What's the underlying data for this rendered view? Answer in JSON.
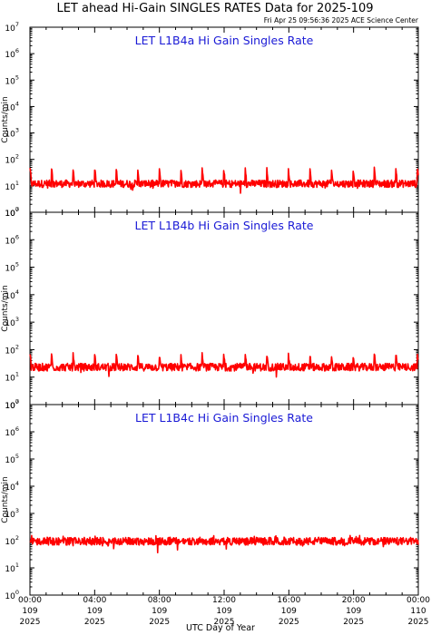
{
  "header": {
    "title": "LET ahead Hi-Gain SINGLES RATES Data for 2025-109",
    "timestamp": "Fri Apr 25 09:56:36 2025 ACE Science Center"
  },
  "x_axis": {
    "title": "UTC Day of Year",
    "ticks": [
      {
        "hours": 0,
        "time": "00:00",
        "day": "109",
        "year": "2025"
      },
      {
        "hours": 4,
        "time": "04:00",
        "day": "109",
        "year": "2025"
      },
      {
        "hours": 8,
        "time": "08:00",
        "day": "109",
        "year": "2025"
      },
      {
        "hours": 12,
        "time": "12:00",
        "day": "109",
        "year": "2025"
      },
      {
        "hours": 16,
        "time": "16:00",
        "day": "109",
        "year": "2025"
      },
      {
        "hours": 20,
        "time": "20:00",
        "day": "109",
        "year": "2025"
      },
      {
        "hours": 24,
        "time": "00:00",
        "day": "110",
        "year": "2025"
      }
    ]
  },
  "colors": {
    "series": "#ff0000",
    "panel_title": "#1a1ad6",
    "axes": "#000000"
  },
  "chart_data": [
    {
      "type": "line",
      "title": "LET L1B4a Hi Gain Singles Rate",
      "ylabel": "Counts/min",
      "yscale": "log",
      "ylim": [
        1,
        10000000
      ],
      "y_ticks": [
        {
          "base": "10",
          "exp": "0"
        },
        {
          "base": "10",
          "exp": "1"
        },
        {
          "base": "10",
          "exp": "2"
        },
        {
          "base": "10",
          "exp": "3"
        },
        {
          "base": "10",
          "exp": "4"
        },
        {
          "base": "10",
          "exp": "5"
        },
        {
          "base": "10",
          "exp": "6"
        },
        {
          "base": "10",
          "exp": "7"
        }
      ],
      "xlim": [
        0,
        24
      ],
      "series": [
        {
          "baseline": 12,
          "spike_period_hours": 1.33,
          "spike_peak": 45
        }
      ]
    },
    {
      "type": "line",
      "title": "LET L1B4b Hi Gain Singles Rate",
      "ylabel": "Counts/min",
      "yscale": "log",
      "ylim": [
        1,
        10000000
      ],
      "y_ticks": [
        {
          "base": "10",
          "exp": "0"
        },
        {
          "base": "10",
          "exp": "1"
        },
        {
          "base": "10",
          "exp": "2"
        },
        {
          "base": "10",
          "exp": "3"
        },
        {
          "base": "10",
          "exp": "4"
        },
        {
          "base": "10",
          "exp": "5"
        },
        {
          "base": "10",
          "exp": "6"
        },
        {
          "base": "10",
          "exp": "7"
        }
      ],
      "xlim": [
        0,
        24
      ],
      "series": [
        {
          "baseline": 23,
          "spike_period_hours": 1.33,
          "spike_peak": 70
        }
      ]
    },
    {
      "type": "line",
      "title": "LET L1B4c Hi Gain Singles Rate",
      "ylabel": "Counts/min",
      "yscale": "log",
      "ylim": [
        1,
        10000000
      ],
      "y_ticks": [
        {
          "base": "10",
          "exp": "0"
        },
        {
          "base": "10",
          "exp": "1"
        },
        {
          "base": "10",
          "exp": "2"
        },
        {
          "base": "10",
          "exp": "3"
        },
        {
          "base": "10",
          "exp": "4"
        },
        {
          "base": "10",
          "exp": "5"
        },
        {
          "base": "10",
          "exp": "6"
        },
        {
          "base": "10",
          "exp": "7"
        }
      ],
      "xlim": [
        0,
        24
      ],
      "series": [
        {
          "baseline": 95,
          "spike_period_hours": 0,
          "spike_peak": 140
        }
      ]
    }
  ]
}
